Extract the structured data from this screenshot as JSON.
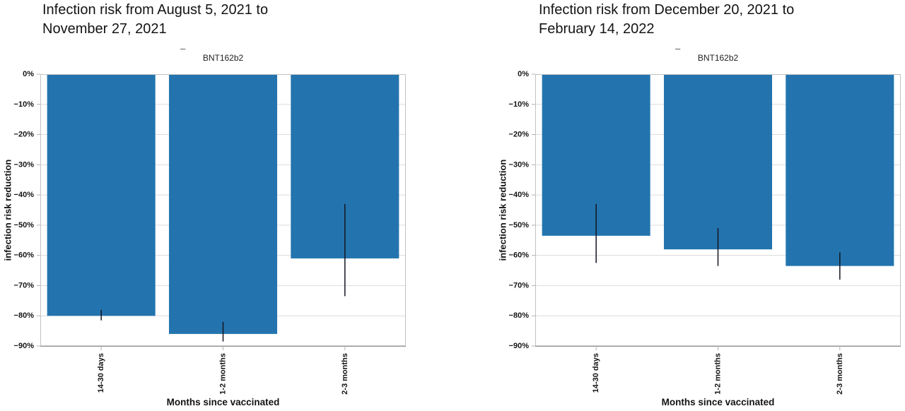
{
  "colors": {
    "bar": "#2374ae",
    "error_bar": "#14141f",
    "grid": "#dcdcdc",
    "plot_border": "#c2c2c2",
    "axis_bottom": "#9a9a9a",
    "tick": "#b0b0b0",
    "text": "#141414"
  },
  "chart_data": [
    {
      "type": "bar",
      "title": "Infection risk from August 5, 2021 to November 27, 2021",
      "title_lines": [
        "Infection risk from August 5, 2021 to",
        "November 27, 2021"
      ],
      "legend_dash": "–",
      "subtitle": "BNT162b2",
      "xlabel": "Months since vaccinated",
      "ylabel": "infection risk reduction",
      "categories": [
        "14-30 days",
        "1-2 months",
        "2-3 months"
      ],
      "values": [
        -80,
        -86,
        -61
      ],
      "error_bars": [
        {
          "low": -81.5,
          "high": -78
        },
        {
          "low": -88.5,
          "high": -82
        },
        {
          "low": -73.5,
          "high": -43
        }
      ],
      "ylim": [
        -90,
        0
      ],
      "ytick_values": [
        0,
        -10,
        -20,
        -30,
        -40,
        -50,
        -60,
        -70,
        -80,
        -90
      ],
      "ytick_labels": [
        "0%",
        "−10%",
        "−20%",
        "−30%",
        "−40%",
        "−50%",
        "−60%",
        "−70%",
        "−80%",
        "−90%"
      ],
      "grid": true,
      "legend_position": "none"
    },
    {
      "type": "bar",
      "title": "Infection risk from December 20, 2021 to February 14, 2022",
      "title_lines": [
        "Infection risk from December 20, 2021 to",
        "February 14, 2022"
      ],
      "legend_dash": "–",
      "subtitle": "BNT162b2",
      "xlabel": "Months since vaccinated",
      "ylabel": "infection risk reduction",
      "categories": [
        "14-30 days",
        "1-2 months",
        "2-3 months"
      ],
      "values": [
        -53.5,
        -58,
        -63.5
      ],
      "error_bars": [
        {
          "low": -62.5,
          "high": -43
        },
        {
          "low": -63.5,
          "high": -51
        },
        {
          "low": -68,
          "high": -59
        }
      ],
      "ylim": [
        -90,
        0
      ],
      "ytick_values": [
        0,
        -10,
        -20,
        -30,
        -40,
        -50,
        -60,
        -70,
        -80,
        -90
      ],
      "ytick_labels": [
        "0%",
        "−10%",
        "−20%",
        "−30%",
        "−40%",
        "−50%",
        "−60%",
        "−70%",
        "−80%",
        "−90%"
      ],
      "grid": true,
      "legend_position": "none"
    }
  ]
}
